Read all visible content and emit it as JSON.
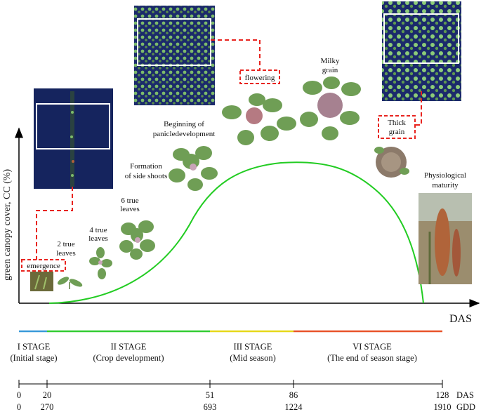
{
  "axes": {
    "y_label": "green canopy cover, CC (%)",
    "x_label": "DAS"
  },
  "growth_stages": [
    {
      "id": "emergence",
      "lines": [
        "emergence"
      ],
      "boxed": true
    },
    {
      "id": "two-true-leaves",
      "lines": [
        "2 true",
        "leaves"
      ]
    },
    {
      "id": "four-true-leaves",
      "lines": [
        "4 true",
        "leaves"
      ]
    },
    {
      "id": "six-true-leaves",
      "lines": [
        "6 true",
        "leaves"
      ]
    },
    {
      "id": "formation-side-shoots",
      "lines": [
        "Formation",
        "of side shoots"
      ]
    },
    {
      "id": "beginning-panicle",
      "lines": [
        "Beginning of",
        "panicledevelopment"
      ]
    },
    {
      "id": "flowering",
      "lines": [
        "flowering"
      ],
      "boxed": true
    },
    {
      "id": "milky-grain",
      "lines": [
        "Milky",
        "grain"
      ]
    },
    {
      "id": "thick-grain",
      "lines": [
        "Thick",
        "grain"
      ],
      "boxed": true
    },
    {
      "id": "physiological-maturity",
      "lines": [
        "Physiological",
        "maturity"
      ]
    }
  ],
  "stages": [
    {
      "name": "I STAGE",
      "desc": "(Initial stage)",
      "color": "#3a9ad9",
      "das_from": 0,
      "das_to": 20
    },
    {
      "name": "II STAGE",
      "desc": "(Crop development)",
      "color": "#33cc33",
      "das_from": 20,
      "das_to": 51
    },
    {
      "name": "III STAGE",
      "desc": "(Mid season)",
      "color": "#e6d81a",
      "das_from": 51,
      "das_to": 86
    },
    {
      "name": "VI STAGE",
      "desc": "(The end of season stage)",
      "color": "#e8542a",
      "das_from": 86,
      "das_to": 128
    }
  ],
  "scale": {
    "das_unit": "DAS",
    "gdd_unit": "GDD",
    "ticks": [
      {
        "das": "0",
        "gdd": "0"
      },
      {
        "das": "20",
        "gdd": "270"
      },
      {
        "das": "51",
        "gdd": "693"
      },
      {
        "das": "86",
        "gdd": "1224"
      },
      {
        "das": "128",
        "gdd": "1910"
      }
    ]
  },
  "colors": {
    "curve": "#22cc22",
    "dashed_connector": "#e8241f",
    "satellite_bg": "#1b2a6b",
    "satellite_veg": "#7dbb6a",
    "plant_leaf": "#6f9e55",
    "panicle": "#b57a82",
    "grain": "#8c7a6a",
    "mature_panicle": "#b0643a"
  }
}
